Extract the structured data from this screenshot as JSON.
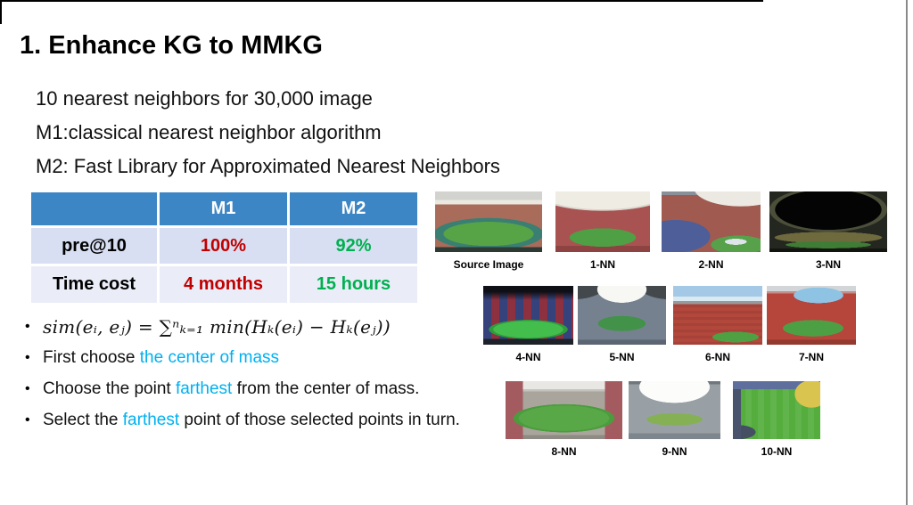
{
  "page": {
    "title": "1. Enhance KG to MMKG"
  },
  "intro_lines": [
    "10 nearest neighbors for 30,000 image",
    "M1:classical nearest neighbor algorithm",
    "M2: Fast Library for Approximated Nearest Neighbors"
  ],
  "table": {
    "headers": [
      "",
      "M1",
      "M2"
    ],
    "rows": [
      {
        "label": "pre@10",
        "m1": "100%",
        "m2": "92%"
      },
      {
        "label": "Time cost",
        "m1": "4 months",
        "m2": "15 hours"
      }
    ],
    "colors": {
      "header_bg": "#3C86C5",
      "header_text": "#FFFFFF",
      "m1_value": "#C00000",
      "m2_value": "#00B050",
      "row_bg_1": "#D8DFF2",
      "row_bg_2": "#EAEDF8"
    }
  },
  "bullets": {
    "formula": "sim(eᵢ, eⱼ) = ∑ⁿₖ₌₁ min(Hₖ(eᵢ) − Hₖ(eⱼ))",
    "b2": {
      "pre": "First choose ",
      "highlight": "the center of mass",
      "post": ""
    },
    "b3": {
      "pre": "Choose the point ",
      "highlight": "farthest",
      "post": " from the center of mass."
    },
    "b4": {
      "pre": "Select the ",
      "highlight": "farthest",
      "post": " point of those selected points in turn."
    },
    "highlight_color": "#00B0F0"
  },
  "gallery": {
    "rows": [
      {
        "items": [
          {
            "label": "Source Image"
          },
          {
            "label": "1-NN"
          },
          {
            "label": "2-NN"
          },
          {
            "label": "3-NN"
          }
        ]
      },
      {
        "items": [
          {
            "label": "4-NN"
          },
          {
            "label": "5-NN"
          },
          {
            "label": "6-NN"
          },
          {
            "label": "7-NN"
          }
        ]
      },
      {
        "items": [
          {
            "label": "8-NN"
          },
          {
            "label": "9-NN"
          },
          {
            "label": "10-NN"
          }
        ]
      }
    ]
  }
}
